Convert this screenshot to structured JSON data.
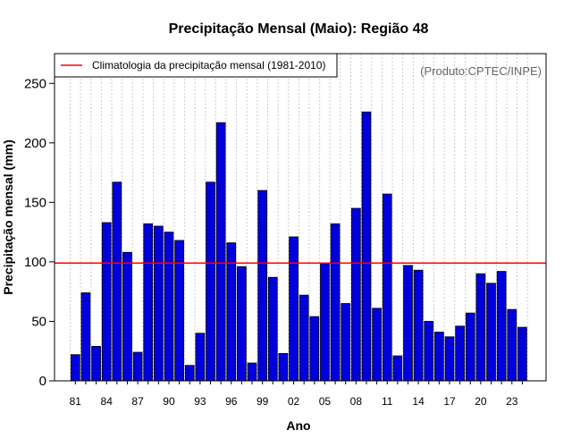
{
  "chart_data": {
    "type": "bar",
    "title": "Precipitação Mensal (Maio): Região 48",
    "xlabel": "Ano",
    "ylabel": "Precipitação mensal (mm)",
    "credit": "(Produto:CPTEC/INPE)",
    "legend": {
      "label": "Climatologia da precipitação mensal (1981-2010)",
      "placement": "top-left"
    },
    "ylim": [
      0,
      275
    ],
    "yticks": [
      "0",
      "50",
      "100",
      "150",
      "200",
      "250"
    ],
    "ytick_values": [
      0,
      50,
      100,
      150,
      200,
      250
    ],
    "xtick_labels": [
      "81",
      "84",
      "87",
      "90",
      "93",
      "96",
      "99",
      "02",
      "05",
      "08",
      "11",
      "14",
      "17",
      "20",
      "23"
    ],
    "categories": [
      "1981",
      "1982",
      "1983",
      "1984",
      "1985",
      "1986",
      "1987",
      "1988",
      "1989",
      "1990",
      "1991",
      "1992",
      "1993",
      "1994",
      "1995",
      "1996",
      "1997",
      "1998",
      "1999",
      "2000",
      "2001",
      "2002",
      "2003",
      "2004",
      "2005",
      "2006",
      "2007",
      "2008",
      "2009",
      "2010",
      "2011",
      "2012",
      "2013",
      "2014",
      "2015",
      "2016",
      "2017",
      "2018",
      "2019",
      "2020",
      "2021",
      "2022",
      "2023",
      "2024"
    ],
    "values": [
      22,
      74,
      29,
      133,
      167,
      108,
      24,
      132,
      130,
      125,
      118,
      13,
      40,
      167,
      217,
      116,
      96,
      15,
      160,
      87,
      23,
      121,
      72,
      54,
      99,
      132,
      65,
      145,
      226,
      61,
      157,
      21,
      97,
      93,
      50,
      41,
      37,
      46,
      57,
      90,
      82,
      92,
      60,
      45
    ],
    "climatology": 99,
    "grid": true,
    "colors": {
      "bar_fill": "#0000dd",
      "bar_edge": "#000000",
      "climatology_line": "#ff0000",
      "grid": "#cccccc"
    }
  }
}
